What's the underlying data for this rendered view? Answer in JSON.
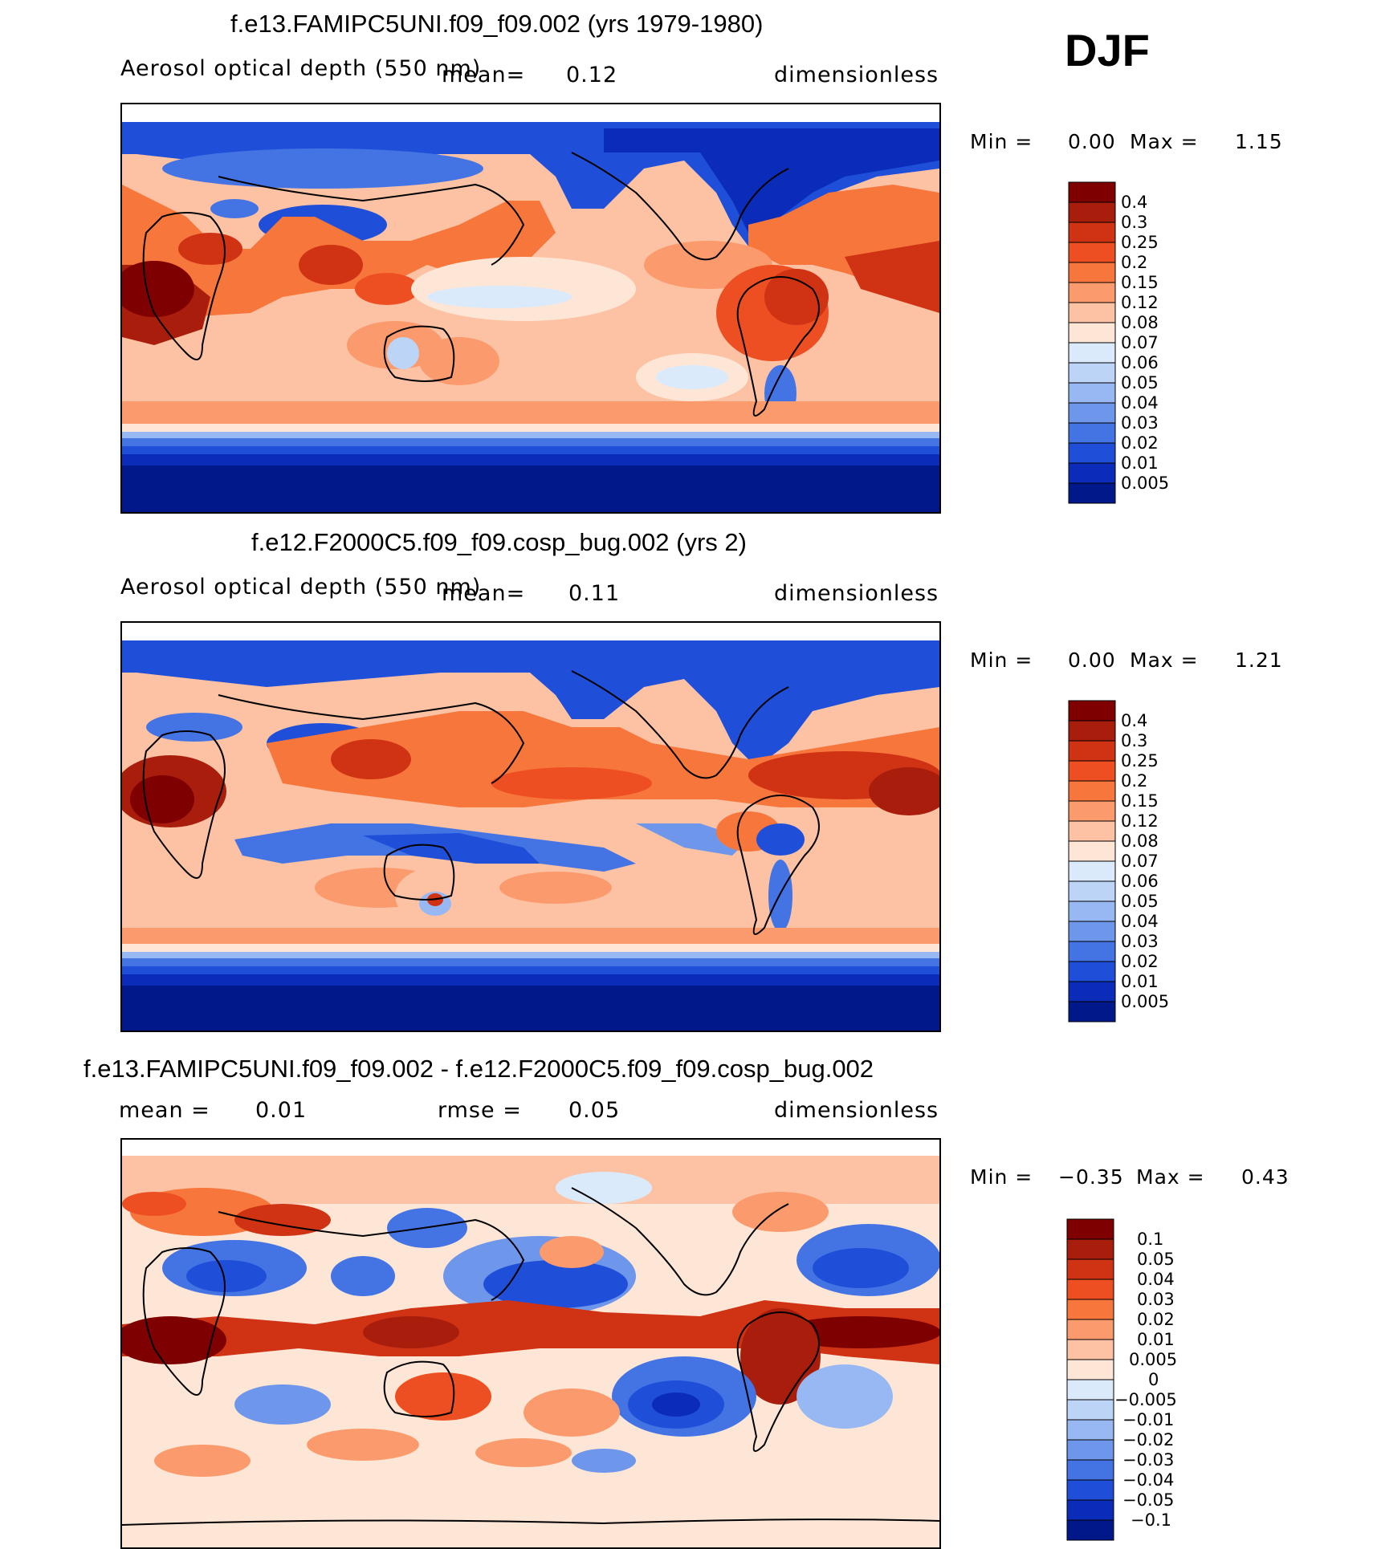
{
  "season": "DJF",
  "colors": {
    "seq": [
      "#7f0000",
      "#a81d0c",
      "#d03314",
      "#ee4f22",
      "#f7763c",
      "#fb9a6c",
      "#fcc2a3",
      "#fee6d6",
      "#dbeafb",
      "#bcd5f7",
      "#97b8f2",
      "#6e96ea",
      "#4474e4",
      "#1f4fd8",
      "#0a2cb8",
      "#001889"
    ],
    "diff": [
      "#7f0000",
      "#a81d0c",
      "#d03314",
      "#ee4f22",
      "#f7763c",
      "#fb9a6c",
      "#fcc2a3",
      "#fee6d6",
      "#dbeafb",
      "#bcd5f7",
      "#97b8f2",
      "#6e96ea",
      "#4474e4",
      "#1f4fd8",
      "#0a2cb8",
      "#001889"
    ]
  },
  "panels": [
    {
      "title": "f.e13.FAMIPC5UNI.f09_f09.002 (yrs 1979-1980)",
      "variable": "Aerosol optical depth (550 nm)",
      "mean_label": "mean=",
      "mean": "0.12",
      "units": "dimensionless",
      "min_label": "Min =",
      "min": "0.00",
      "max_label": "Max =",
      "max": "1.15",
      "levels": [
        "0.4",
        "0.3",
        "0.25",
        "0.2",
        "0.15",
        "0.12",
        "0.08",
        "0.07",
        "0.06",
        "0.05",
        "0.04",
        "0.03",
        "0.02",
        "0.01",
        "0.005"
      ]
    },
    {
      "title": "f.e12.F2000C5.f09_f09.cosp_bug.002 (yrs 2)",
      "variable": "Aerosol optical depth (550 nm)",
      "mean_label": "mean=",
      "mean": "0.11",
      "units": "dimensionless",
      "min_label": "Min =",
      "min": "0.00",
      "max_label": "Max =",
      "max": "1.21",
      "levels": [
        "0.4",
        "0.3",
        "0.25",
        "0.2",
        "0.15",
        "0.12",
        "0.08",
        "0.07",
        "0.06",
        "0.05",
        "0.04",
        "0.03",
        "0.02",
        "0.01",
        "0.005"
      ]
    },
    {
      "title": "f.e13.FAMIPC5UNI.f09_f09.002 - f.e12.F2000C5.f09_f09.cosp_bug.002",
      "mean_label": "mean =",
      "mean": "0.01",
      "rmse_label": "rmse =",
      "rmse": "0.05",
      "units": "dimensionless",
      "min_label": "Min =",
      "min": "−0.35",
      "max_label": "Max =",
      "max": "0.43",
      "levels": [
        "0.1",
        "0.05",
        "0.04",
        "0.03",
        "0.02",
        "0.01",
        "0.005",
        "0",
        "−0.005",
        "−0.01",
        "−0.02",
        "−0.03",
        "−0.04",
        "−0.05",
        "−0.1"
      ]
    }
  ]
}
